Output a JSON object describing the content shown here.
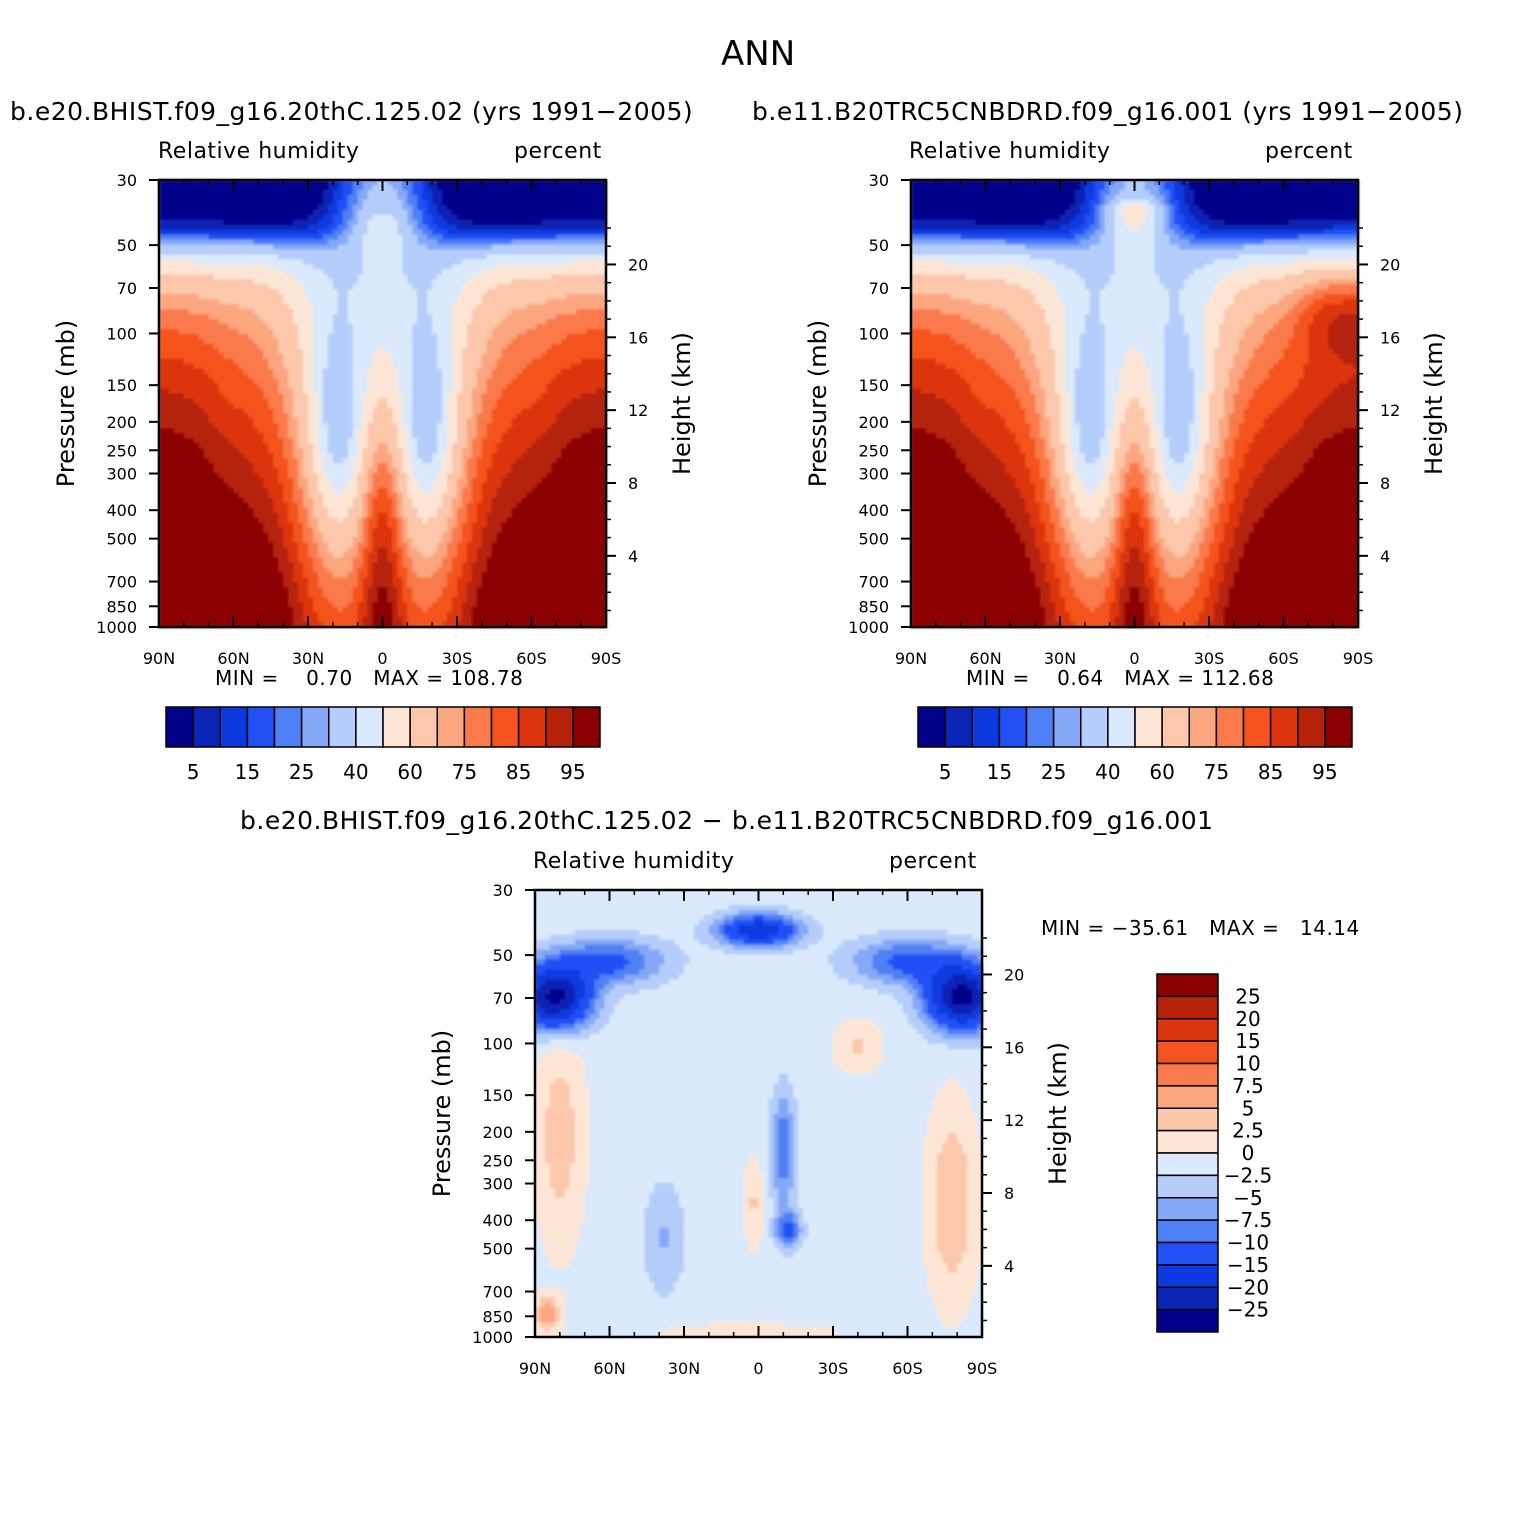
{
  "figure": {
    "title": "ANN"
  },
  "panels": [
    {
      "id": "left",
      "title": "b.e20.BHIST.f09_g16.20thC.125.02 (yrs 1991−2005)",
      "variable": "Relative humidity",
      "units": "percent",
      "stats": "MIN =    0.70   MAX = 108.78"
    },
    {
      "id": "right",
      "title": "b.e11.B20TRC5CNBDRD.f09_g16.001 (yrs 1991−2005)",
      "variable": "Relative humidity",
      "units": "percent",
      "stats": "MIN =    0.64   MAX = 112.68"
    },
    {
      "id": "diff",
      "title": "b.e20.BHIST.f09_g16.20thC.125.02 − b.e11.B20TRC5CNBDRD.f09_g16.001",
      "variable": "Relative humidity",
      "units": "percent",
      "stats": "MIN = −35.61   MAX =   14.14"
    }
  ],
  "chart_data": [
    {
      "type": "heatmap",
      "title": "b.e20.BHIST.f09_g16.20thC.125.02 (yrs 1991−2005)",
      "field": "Relative humidity (percent), annual zonal mean",
      "xlabel": "",
      "ylabel": "Pressure (mb)",
      "ylabel_right": "Height (km)",
      "x_ticks": [
        "90N",
        "60N",
        "30N",
        "0",
        "30S",
        "60S",
        "90S"
      ],
      "y_ticks": [
        30,
        50,
        70,
        100,
        150,
        200,
        250,
        300,
        400,
        500,
        700,
        850,
        1000
      ],
      "height_ticks": [
        4,
        8,
        12,
        16,
        20
      ],
      "ylim": [
        1000,
        30
      ],
      "min": 0.7,
      "max": 108.78,
      "colorbar_labels": [
        "5",
        "15",
        "25",
        "40",
        "60",
        "75",
        "85",
        "95"
      ]
    },
    {
      "type": "heatmap",
      "title": "b.e11.B20TRC5CNBDRD.f09_g16.001 (yrs 1991−2005)",
      "field": "Relative humidity (percent), annual zonal mean",
      "xlabel": "",
      "ylabel": "Pressure (mb)",
      "ylabel_right": "Height (km)",
      "x_ticks": [
        "90N",
        "60N",
        "30N",
        "0",
        "30S",
        "60S",
        "90S"
      ],
      "y_ticks": [
        30,
        50,
        70,
        100,
        150,
        200,
        250,
        300,
        400,
        500,
        700,
        850,
        1000
      ],
      "height_ticks": [
        4,
        8,
        12,
        16,
        20
      ],
      "ylim": [
        1000,
        30
      ],
      "min": 0.64,
      "max": 112.68,
      "colorbar_labels": [
        "5",
        "15",
        "25",
        "40",
        "60",
        "75",
        "85",
        "95"
      ]
    },
    {
      "type": "heatmap",
      "title": "b.e20.BHIST.f09_g16.20thC.125.02 − b.e11.B20TRC5CNBDRD.f09_g16.001",
      "field": "Relative humidity difference (percent)",
      "xlabel": "",
      "ylabel": "Pressure (mb)",
      "ylabel_right": "Height (km)",
      "x_ticks": [
        "90N",
        "60N",
        "30N",
        "0",
        "30S",
        "60S",
        "90S"
      ],
      "y_ticks": [
        30,
        50,
        70,
        100,
        150,
        200,
        250,
        300,
        400,
        500,
        700,
        850,
        1000
      ],
      "height_ticks": [
        4,
        8,
        12,
        16,
        20
      ],
      "ylim": [
        1000,
        30
      ],
      "min": -35.61,
      "max": 14.14,
      "colorbar_labels": [
        "25",
        "20",
        "15",
        "10",
        "7.5",
        "5",
        "2.5",
        "0",
        "−2.5",
        "−5",
        "−7.5",
        "−10",
        "−15",
        "−20",
        "−25"
      ]
    }
  ],
  "palette": {
    "abs": [
      "#00008b",
      "#0a24b4",
      "#0c3ae0",
      "#2150f5",
      "#5080f5",
      "#85a8f8",
      "#b5cdfa",
      "#daeafc",
      "#fde6d6",
      "#fcc7aa",
      "#fca680",
      "#fa7a4c",
      "#f4531f",
      "#dc3510",
      "#b52207",
      "#8b0000"
    ],
    "diff": [
      "#00008b",
      "#0a24b4",
      "#0c3ae0",
      "#2150f5",
      "#5080f5",
      "#85a8f8",
      "#b5cdfa",
      "#daeafc",
      "#fde6d6",
      "#fcc7aa",
      "#fca680",
      "#fa7a4c",
      "#f4531f",
      "#dc3510",
      "#b52207",
      "#8b0000"
    ]
  }
}
